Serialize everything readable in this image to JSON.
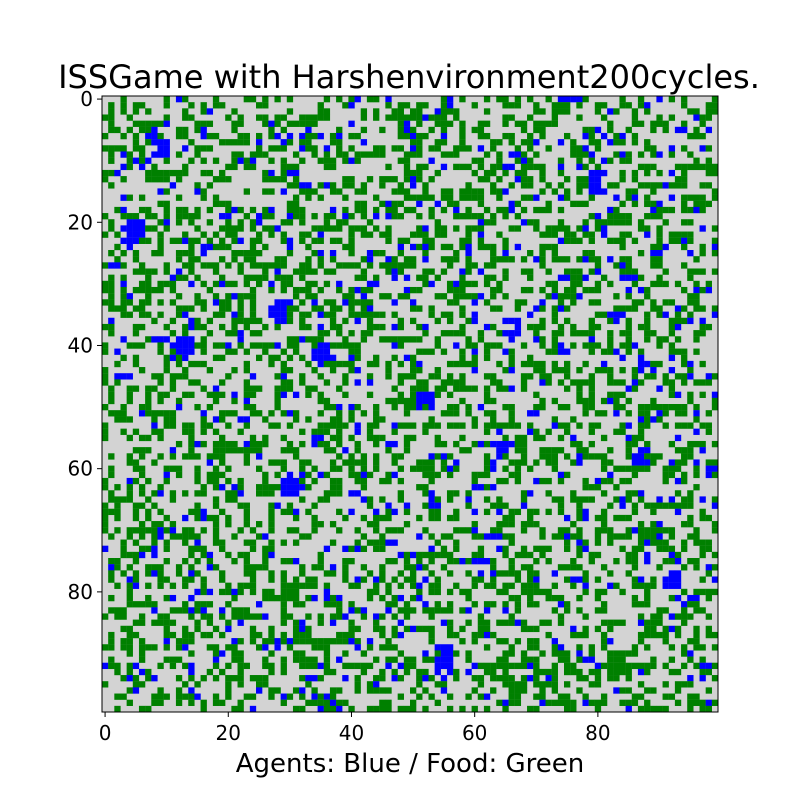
{
  "chart_data": {
    "type": "heatmap",
    "title": "ISSGame with Harshenvironment200cycles.",
    "xlabel": "Agents: Blue / Food: Green",
    "ylabel": "",
    "grid_size": [
      100,
      100
    ],
    "xlim": [
      -0.5,
      99.5
    ],
    "ylim": [
      99.5,
      -0.5
    ],
    "x_ticks": [
      0,
      20,
      40,
      60,
      80
    ],
    "y_ticks": [
      0,
      20,
      40,
      60,
      80
    ],
    "grid": false,
    "legend": "none",
    "categories": [
      "empty",
      "food",
      "agent"
    ],
    "colors": {
      "empty": "#d3d3d3",
      "food": "#008000",
      "agent": "#0000ff"
    },
    "approx_fractions": {
      "food": 0.36,
      "agent": 0.06
    },
    "agent_clusters": [
      [
        8,
        9
      ],
      [
        21,
        5
      ],
      [
        22,
        4
      ],
      [
        34,
        29
      ],
      [
        35,
        28
      ],
      [
        41,
        12
      ],
      [
        40,
        13
      ],
      [
        63,
        30
      ],
      [
        62,
        31
      ],
      [
        65,
        54
      ],
      [
        57,
        65
      ],
      [
        90,
        55
      ],
      [
        92,
        55
      ],
      [
        78,
        92
      ],
      [
        58,
        87
      ],
      [
        44,
        88
      ],
      [
        42,
        35
      ],
      [
        49,
        52
      ],
      [
        37,
        66
      ],
      [
        14,
        80
      ]
    ]
  }
}
